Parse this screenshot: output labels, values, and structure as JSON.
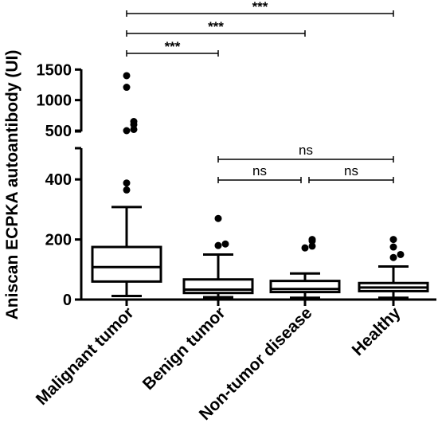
{
  "chart_data": {
    "type": "box",
    "ylabel": "Aniscan ECPKA autoantibody (UI)",
    "y_axis": {
      "broken": true,
      "lower_segment": {
        "range": [
          0,
          480
        ],
        "ticks": [
          0,
          200,
          400
        ]
      },
      "upper_segment": {
        "range": [
          400,
          1500
        ],
        "ticks": [
          500,
          1000,
          1500
        ]
      }
    },
    "categories": [
      "Malignant tumor",
      "Benign tumor",
      "Non-tumor disease",
      "Healthy"
    ],
    "boxes": [
      {
        "name": "Malignant tumor",
        "whisker_low": 12,
        "q1": 60,
        "median": 108,
        "q3": 175,
        "whisker_high": 308,
        "outliers": [
          365,
          388,
          500,
          520,
          600,
          650,
          1210,
          1400
        ]
      },
      {
        "name": "Benign tumor",
        "whisker_low": 8,
        "q1": 22,
        "median": 33,
        "q3": 67,
        "whisker_high": 150,
        "outliers": [
          180,
          185,
          270
        ]
      },
      {
        "name": "Non-tumor disease",
        "whisker_low": 6,
        "q1": 25,
        "median": 35,
        "q3": 62,
        "whisker_high": 87,
        "outliers": [
          172,
          178,
          195,
          200
        ]
      },
      {
        "name": "Healthy",
        "whisker_low": 6,
        "q1": 28,
        "median": 40,
        "q3": 55,
        "whisker_high": 110,
        "outliers": [
          140,
          150,
          175,
          200
        ]
      }
    ],
    "comparisons": [
      {
        "groups": [
          0,
          3
        ],
        "label": "***"
      },
      {
        "groups": [
          0,
          2
        ],
        "label": "***"
      },
      {
        "groups": [
          0,
          1
        ],
        "label": "***"
      },
      {
        "groups": [
          1,
          3
        ],
        "label": "ns"
      },
      {
        "groups": [
          1,
          2
        ],
        "label": "ns"
      },
      {
        "groups": [
          2,
          3
        ],
        "label": "ns"
      }
    ]
  }
}
